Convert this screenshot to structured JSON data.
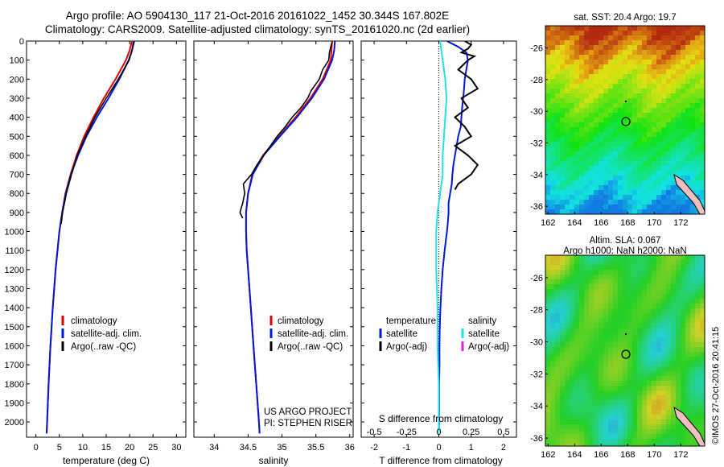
{
  "title_line1": "Argo profile: AO 5904130_117 21-Oct-2016 20161022_1452 30.344S 167.802E",
  "title_line2": "Climatology: CARS2009. Satellite-adjusted climatology: synTS_20161020.nc (2d earlier)",
  "imos_label": "©IMOS 27-Oct-2016 20:41:15",
  "colors": {
    "climatology": "#e00000",
    "satellite": "#0018d8",
    "argo": "#000000",
    "salinity_satellite": "#20e0e8",
    "salinity_argo": "#e020e0"
  },
  "chart_data": [
    {
      "type": "line",
      "name": "temperature-panel",
      "xlabel": "temperature (deg C)",
      "xlim": [
        -2,
        32
      ],
      "xticks": [
        "0",
        "5",
        "10",
        "15",
        "20",
        "25",
        "30"
      ],
      "xtick_values": [
        0,
        5,
        10,
        15,
        20,
        25,
        30
      ],
      "ylim": [
        0,
        2080
      ],
      "yticks": [
        "0",
        "100",
        "200",
        "300",
        "400",
        "500",
        "600",
        "700",
        "800",
        "900",
        "1000",
        "1100",
        "1200",
        "1300",
        "1400",
        "1500",
        "1600",
        "1700",
        "1800",
        "1900",
        "2000"
      ],
      "ytick_values": [
        0,
        100,
        200,
        300,
        400,
        500,
        600,
        700,
        800,
        900,
        1000,
        1100,
        1200,
        1300,
        1400,
        1500,
        1600,
        1700,
        1800,
        1900,
        2000
      ],
      "legend": [
        "climatology",
        "satellite-adj. clim.",
        "Argo(..raw -QC)"
      ],
      "series": [
        {
          "name": "climatology",
          "key": "climatology",
          "depth": [
            0,
            50,
            100,
            200,
            300,
            400,
            500,
            600,
            700,
            800,
            900,
            1000,
            1200,
            1400,
            1600,
            1800,
            2000,
            2060
          ],
          "values": [
            20.5,
            20.0,
            19.2,
            17.0,
            14.5,
            12.3,
            10.3,
            8.7,
            7.4,
            6.3,
            5.6,
            5.0,
            4.2,
            3.6,
            3.1,
            2.7,
            2.4,
            2.3
          ]
        },
        {
          "name": "satellite-adj. clim.",
          "key": "satellite",
          "depth": [
            0,
            50,
            100,
            200,
            300,
            400,
            500,
            600,
            700,
            800,
            900,
            1000,
            1200,
            1400,
            1600,
            1800,
            2000,
            2060
          ],
          "values": [
            21.0,
            20.5,
            19.8,
            17.8,
            15.5,
            13.0,
            10.8,
            9.0,
            7.5,
            6.4,
            5.6,
            5.0,
            4.2,
            3.6,
            3.1,
            2.7,
            2.4,
            2.3
          ]
        },
        {
          "name": "Argo(..raw -QC)",
          "key": "argo",
          "depth": [
            5,
            50,
            100,
            200,
            300,
            400,
            500,
            600,
            700,
            800,
            900,
            960
          ],
          "values": [
            20.8,
            20.5,
            19.9,
            17.6,
            15.0,
            12.6,
            10.6,
            8.8,
            7.6,
            6.5,
            5.7,
            5.4
          ]
        }
      ]
    },
    {
      "type": "line",
      "name": "salinity-panel",
      "xlabel": "salinity",
      "xlim": [
        33.7,
        36.05
      ],
      "xticks": [
        "34",
        "34.5",
        "35",
        "35.5",
        "36"
      ],
      "xtick_values": [
        34,
        34.5,
        35,
        35.5,
        36
      ],
      "ylim": [
        0,
        2080
      ],
      "legend": [
        "climatology",
        "satellite-adj. clim.",
        "Argo(..raw -QC)"
      ],
      "annotation": [
        "US ARGO PROJECT",
        "PI: STEPHEN RISER"
      ],
      "series": [
        {
          "name": "climatology",
          "key": "climatology",
          "depth": [
            0,
            50,
            100,
            200,
            300,
            400,
            500,
            600,
            700,
            800,
            900,
            1000,
            1100,
            1200,
            1400,
            1600,
            1800,
            2000,
            2060
          ],
          "values": [
            35.74,
            35.73,
            35.72,
            35.6,
            35.42,
            35.2,
            34.96,
            34.72,
            34.56,
            34.5,
            34.47,
            34.47,
            34.48,
            34.5,
            34.54,
            34.58,
            34.62,
            34.66,
            34.67
          ]
        },
        {
          "name": "satellite-adj. clim.",
          "key": "satellite",
          "depth": [
            0,
            50,
            100,
            200,
            300,
            400,
            500,
            600,
            700,
            800,
            900,
            1000,
            1100,
            1200,
            1400,
            1600,
            1800,
            2000,
            2060
          ],
          "values": [
            35.78,
            35.77,
            35.74,
            35.62,
            35.44,
            35.22,
            34.97,
            34.73,
            34.57,
            34.5,
            34.47,
            34.47,
            34.48,
            34.5,
            34.54,
            34.58,
            34.62,
            34.66,
            34.67
          ]
        },
        {
          "name": "Argo(..raw -QC)",
          "key": "argo",
          "depth": [
            5,
            30,
            60,
            100,
            150,
            200,
            260,
            300,
            350,
            400,
            450,
            500,
            550,
            600,
            650,
            700,
            750,
            800,
            850,
            900,
            930
          ],
          "values": [
            35.74,
            35.72,
            35.7,
            35.69,
            35.6,
            35.55,
            35.43,
            35.38,
            35.28,
            35.15,
            35.05,
            34.93,
            34.83,
            34.73,
            34.63,
            34.55,
            34.43,
            34.45,
            34.42,
            34.38,
            34.42
          ]
        }
      ]
    },
    {
      "type": "line",
      "name": "difference-panel",
      "xlabel": "T difference from climatology",
      "xlabel_top": "S difference from climatology",
      "xlim": [
        -2.4,
        2.4
      ],
      "xticks": [
        "-2",
        "-1",
        "0",
        "1",
        "2"
      ],
      "xtick_values": [
        -2,
        -1,
        0,
        1,
        2
      ],
      "sticks": [
        "-0.5",
        "-0.25",
        "0",
        "0.25",
        "0.5"
      ],
      "stick_values": [
        -0.5,
        -0.25,
        0,
        0.25,
        0.5
      ],
      "ylim": [
        0,
        2080
      ],
      "legend_temperature_title": "temperature",
      "legend_salinity_title": "salinity",
      "legend_temperature": [
        "satellite",
        "Argo(-adj)"
      ],
      "legend_salinity": [
        "satellite",
        "Argo(-adj)"
      ],
      "series": [
        {
          "name": "satellite",
          "group": "temperature",
          "key": "satellite",
          "depth": [
            0,
            30,
            60,
            100,
            150,
            200,
            250,
            300,
            350,
            400,
            450,
            500,
            550,
            600,
            650,
            700,
            750,
            800,
            850,
            900,
            950,
            1000,
            1100,
            1200,
            1300,
            1400,
            1500,
            1600,
            1700,
            1800,
            1900,
            2000,
            2060
          ],
          "values": [
            0.25,
            0.6,
            0.85,
            0.9,
            0.85,
            0.8,
            0.78,
            0.75,
            0.72,
            0.7,
            0.68,
            0.6,
            0.55,
            0.5,
            0.45,
            0.42,
            0.4,
            0.35,
            0.3,
            0.3,
            0.28,
            0.25,
            0.18,
            0.12,
            0.08,
            0.05,
            0.03,
            0.02,
            0.02,
            0.01,
            0.01,
            0.01,
            0.0
          ]
        },
        {
          "name": "Argo(-adj)",
          "group": "temperature",
          "key": "argo",
          "depth": [
            0,
            20,
            40,
            60,
            80,
            100,
            150,
            200,
            250,
            300,
            350,
            400,
            450,
            500,
            550,
            600,
            650,
            700,
            750,
            780
          ],
          "values": [
            0.8,
            1.0,
            0.9,
            0.7,
            1.1,
            0.9,
            0.6,
            1.0,
            1.2,
            0.7,
            0.9,
            0.5,
            0.8,
            1.0,
            0.5,
            0.9,
            1.2,
            1.0,
            0.6,
            0.5
          ]
        },
        {
          "name": "satellite",
          "group": "salinity",
          "key": "salinity_satellite",
          "depth": [
            0,
            100,
            200,
            300,
            400,
            500,
            600,
            700,
            800,
            900,
            1000,
            1200,
            1400,
            1600,
            1800,
            2000,
            2060
          ],
          "values": [
            0.01,
            0.03,
            0.05,
            0.06,
            0.05,
            0.04,
            0.03,
            0.03,
            0.01,
            -0.01,
            -0.02,
            -0.02,
            -0.01,
            -0.01,
            0.0,
            0.0,
            0.0
          ]
        }
      ]
    }
  ],
  "maps": [
    {
      "name": "sst-map",
      "title": "sat. SST: 20.4  Argo: 19.7",
      "title2": "",
      "xticks": [
        "162",
        "164",
        "166",
        "168",
        "170",
        "172"
      ],
      "yticks": [
        "-26",
        "-28",
        "-30",
        "-32",
        "-34",
        "-36"
      ]
    },
    {
      "name": "sla-map",
      "title": "Altim. SLA: 0.067",
      "title2": "Argo h1000: NaN h2000: NaN",
      "xticks": [
        "162",
        "164",
        "166",
        "168",
        "170",
        "172"
      ],
      "yticks": [
        "-26",
        "-28",
        "-30",
        "-32",
        "-34",
        "-36"
      ]
    }
  ]
}
